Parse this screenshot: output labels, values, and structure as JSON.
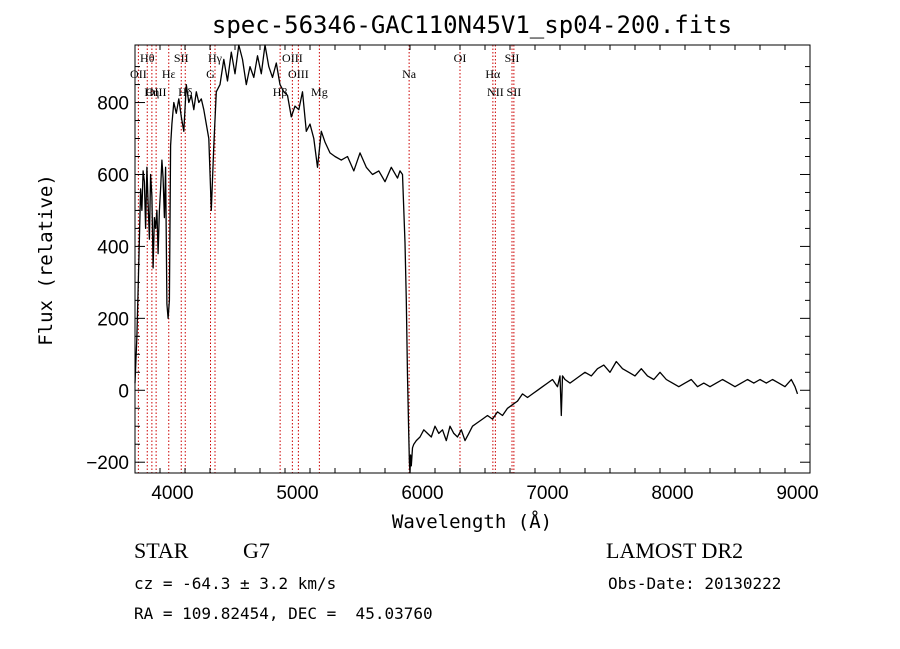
{
  "chart_data": {
    "type": "line",
    "title": "spec-56346-GAC110N45V1_sp04-200.fits",
    "xlabel": "Wavelength (Å)",
    "ylabel": "Flux (relative)",
    "xlim": [
      3700,
      9100
    ],
    "ylim": [
      -230,
      960
    ],
    "xticks": [
      4000,
      5000,
      6000,
      7000,
      8000,
      9000
    ],
    "yticks": [
      -200,
      0,
      200,
      400,
      600,
      800
    ],
    "grid": false,
    "series": [
      {
        "x": [
          3700,
          3715,
          3725,
          3735,
          3745,
          3755,
          3765,
          3775,
          3785,
          3795,
          3805,
          3815,
          3825,
          3835,
          3845,
          3855,
          3865,
          3875,
          3885,
          3895,
          3905,
          3915,
          3925,
          3935,
          3945,
          3955,
          3965,
          3975,
          3985,
          3995,
          4010,
          4030,
          4050,
          4070,
          4090,
          4110,
          4130,
          4150,
          4170,
          4190,
          4210,
          4230,
          4250,
          4270,
          4290,
          4310,
          4330,
          4350,
          4380,
          4410,
          4440,
          4470,
          4500,
          4530,
          4560,
          4590,
          4620,
          4650,
          4680,
          4710,
          4740,
          4770,
          4800,
          4830,
          4860,
          4890,
          4920,
          4950,
          4980,
          5010,
          5040,
          5070,
          5100,
          5130,
          5160,
          5190,
          5220,
          5260,
          5300,
          5350,
          5400,
          5450,
          5500,
          5550,
          5600,
          5650,
          5700,
          5750,
          5800,
          5820,
          5840,
          5860,
          5870,
          5880,
          5890,
          5895,
          5900,
          5905,
          5910,
          5920,
          5930,
          5950,
          5980,
          6010,
          6040,
          6070,
          6100,
          6130,
          6160,
          6190,
          6220,
          6250,
          6280,
          6310,
          6340,
          6370,
          6400,
          6440,
          6480,
          6520,
          6560,
          6600,
          6640,
          6680,
          6720,
          6760,
          6800,
          6840,
          6880,
          6920,
          6960,
          7000,
          7040,
          7080,
          7100,
          7110,
          7120,
          7140,
          7180,
          7220,
          7260,
          7300,
          7350,
          7400,
          7450,
          7500,
          7550,
          7600,
          7650,
          7700,
          7750,
          7800,
          7850,
          7900,
          7950,
          8000,
          8050,
          8100,
          8150,
          8200,
          8250,
          8300,
          8350,
          8400,
          8450,
          8500,
          8550,
          8600,
          8650,
          8700,
          8750,
          8800,
          8850,
          8900,
          8950,
          8980,
          9000
        ],
        "y": [
          20,
          150,
          280,
          420,
          560,
          500,
          610,
          580,
          450,
          620,
          520,
          420,
          600,
          540,
          340,
          480,
          450,
          500,
          380,
          500,
          560,
          640,
          590,
          480,
          620,
          240,
          200,
          250,
          680,
          740,
          800,
          770,
          810,
          760,
          720,
          850,
          800,
          820,
          780,
          830,
          800,
          810,
          780,
          740,
          700,
          500,
          680,
          830,
          850,
          920,
          860,
          940,
          880,
          960,
          920,
          850,
          900,
          870,
          930,
          880,
          960,
          900,
          870,
          910,
          850,
          830,
          820,
          760,
          790,
          780,
          830,
          720,
          740,
          700,
          620,
          720,
          690,
          660,
          650,
          640,
          650,
          610,
          660,
          620,
          600,
          610,
          580,
          620,
          590,
          610,
          600,
          410,
          250,
          40,
          -130,
          -200,
          -230,
          -180,
          -210,
          -160,
          -150,
          -140,
          -130,
          -110,
          -120,
          -130,
          -100,
          -120,
          -110,
          -140,
          -100,
          -120,
          -130,
          -110,
          -140,
          -120,
          -100,
          -90,
          -80,
          -70,
          -80,
          -60,
          -70,
          -50,
          -40,
          -30,
          -10,
          -20,
          -10,
          0,
          10,
          20,
          30,
          10,
          40,
          -70,
          40,
          30,
          20,
          30,
          40,
          50,
          40,
          60,
          70,
          50,
          80,
          60,
          50,
          40,
          60,
          40,
          30,
          50,
          30,
          20,
          10,
          20,
          30,
          10,
          20,
          10,
          20,
          30,
          20,
          10,
          20,
          30,
          20,
          30,
          20,
          30,
          20,
          10,
          30,
          10,
          -10
        ]
      }
    ],
    "emission_lines": [
      {
        "label": "Hθ",
        "x": 3798,
        "row": 1
      },
      {
        "label": "OII",
        "x": 3727,
        "row": 2
      },
      {
        "label": "Hη",
        "x": 3835,
        "row": 3
      },
      {
        "label": "OIII",
        "x": 3869,
        "row": 3
      },
      {
        "label": "SII",
        "x": 4070,
        "row": 1
      },
      {
        "label": "Hε",
        "x": 3970,
        "row": 2
      },
      {
        "label": "Hδ",
        "x": 4102,
        "row": 3
      },
      {
        "label": "Hγ",
        "x": 4340,
        "row": 1
      },
      {
        "label": "G",
        "x": 4304,
        "row": 2
      },
      {
        "label": "OIII",
        "x": 4959,
        "row": 1
      },
      {
        "label": "OIII",
        "x": 5007,
        "row": 2
      },
      {
        "label": "Hβ",
        "x": 4861,
        "row": 3
      },
      {
        "label": "Mg",
        "x": 5175,
        "row": 3
      },
      {
        "label": "Na",
        "x": 5893,
        "row": 2
      },
      {
        "label": "OI",
        "x": 6300,
        "row": 1
      },
      {
        "label": "Hα",
        "x": 6563,
        "row": 2
      },
      {
        "label": "NII",
        "x": 6583,
        "row": 3
      },
      {
        "label": "SII",
        "x": 6716,
        "row": 1
      },
      {
        "label": "SII",
        "x": 6731,
        "row": 3
      }
    ]
  },
  "info": {
    "object_class": "STAR",
    "subclass": "G7",
    "survey": "LAMOST DR2",
    "redshift": "cz = -64.3 ± 3.2 km/s",
    "obs_date": "Obs-Date: 20130222",
    "coords": "RA = 109.82454, DEC =  45.03760"
  },
  "colors": {
    "spectrum": "#000000",
    "line_markers": "#cc0000"
  }
}
